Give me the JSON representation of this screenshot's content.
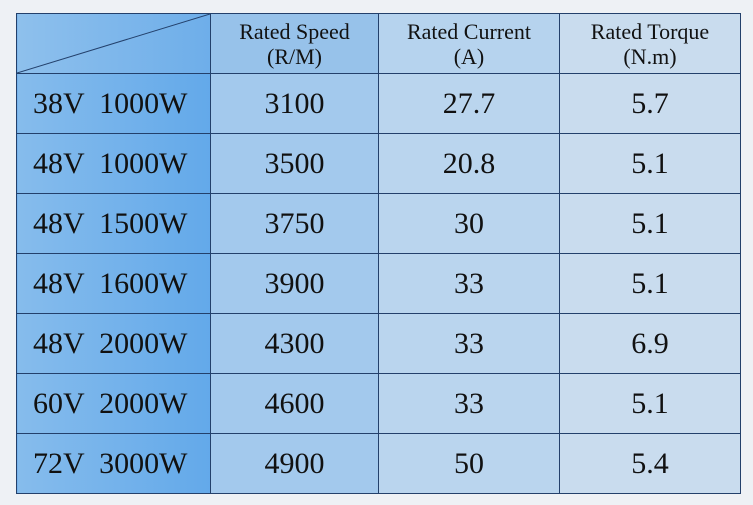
{
  "header": {
    "columns": [
      {
        "title": "Rated Speed",
        "unit": "(R/M)"
      },
      {
        "title": "Rated Current",
        "unit": "(A)"
      },
      {
        "title": "Rated Torque",
        "unit": "(N.m)"
      }
    ]
  },
  "rows": [
    {
      "model": "38V  1000W",
      "speed": "3100",
      "current": "27.7",
      "torque": "5.7"
    },
    {
      "model": "48V  1000W",
      "speed": "3500",
      "current": "20.8",
      "torque": "5.1"
    },
    {
      "model": "48V  1500W",
      "speed": "3750",
      "current": "30",
      "torque": "5.1"
    },
    {
      "model": "48V  1600W",
      "speed": "3900",
      "current": "33",
      "torque": "5.1"
    },
    {
      "model": "48V  2000W",
      "speed": "4300",
      "current": "33",
      "torque": "6.9"
    },
    {
      "model": "60V  2000W",
      "speed": "4600",
      "current": "33",
      "torque": "5.1"
    },
    {
      "model": "72V  3000W",
      "speed": "4900",
      "current": "50",
      "torque": "5.4"
    }
  ],
  "colors": {
    "border": "#23406b",
    "label_column": "#6eaeea",
    "speed_column": "#a3c9ed",
    "current_column": "#bad5ee",
    "torque_column": "#c9dcee"
  }
}
